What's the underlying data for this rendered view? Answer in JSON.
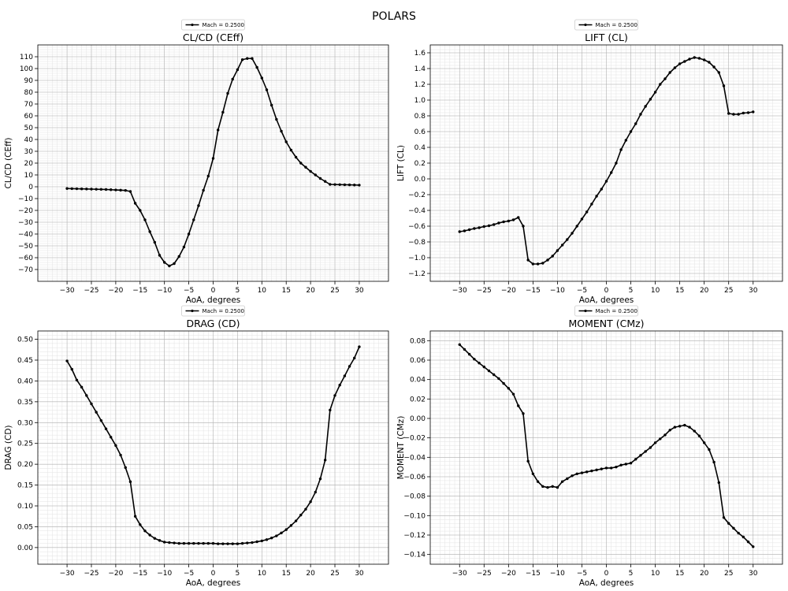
{
  "suptitle": "POLARS",
  "chart_data": [
    {
      "type": "line",
      "title": "CL/CD (CEff)",
      "xlabel": "AoA, degrees",
      "ylabel": "CL/CD (CEff)",
      "legend": "Mach = 0.2500",
      "legend_position": "top-center",
      "grid": true,
      "xlim": [
        -36,
        36
      ],
      "ylim": [
        -80,
        120
      ],
      "xticks": [
        -30,
        -25,
        -20,
        -15,
        -10,
        -5,
        0,
        5,
        10,
        15,
        20,
        25,
        30
      ],
      "yticks": [
        -70,
        -60,
        -50,
        -40,
        -30,
        -20,
        -10,
        0,
        10,
        20,
        30,
        40,
        50,
        60,
        70,
        80,
        90,
        100,
        110
      ],
      "series": [
        {
          "name": "Mach = 0.2500",
          "x": [
            -30,
            -29,
            -28,
            -27,
            -26,
            -25,
            -24,
            -23,
            -22,
            -21,
            -20,
            -19,
            -18,
            -17,
            -16,
            -15,
            -14,
            -13,
            -12,
            -11,
            -10,
            -9,
            -8,
            -7,
            -6,
            -5,
            -4,
            -3,
            -2,
            -1,
            0,
            1,
            2,
            3,
            4,
            5,
            6,
            7,
            8,
            9,
            10,
            11,
            12,
            13,
            14,
            15,
            16,
            17,
            18,
            19,
            20,
            21,
            22,
            23,
            24,
            25,
            26,
            27,
            28,
            29,
            30
          ],
          "y": [
            -1.5,
            -1.6,
            -1.7,
            -1.8,
            -1.9,
            -2.0,
            -2.1,
            -2.2,
            -2.3,
            -2.5,
            -2.7,
            -2.9,
            -3.1,
            -4.0,
            -14.0,
            -20.0,
            -28.0,
            -38.0,
            -47.0,
            -58.0,
            -64.0,
            -67.0,
            -65.0,
            -59.0,
            -51.0,
            -40.0,
            -28.0,
            -16.0,
            -3.0,
            9.0,
            24.0,
            48.0,
            63.0,
            79.0,
            91.0,
            99.0,
            107.5,
            108.5,
            108.5,
            101.0,
            92.0,
            82.0,
            69.0,
            57.0,
            47.0,
            38.0,
            31.0,
            25.0,
            20.0,
            16.5,
            13.0,
            10.0,
            7.0,
            4.5,
            2.0,
            1.9,
            1.8,
            1.7,
            1.6,
            1.5,
            1.4
          ]
        }
      ]
    },
    {
      "type": "line",
      "title": "LIFT (CL)",
      "xlabel": "AoA, degrees",
      "ylabel": "LIFT (CL)",
      "legend": "Mach = 0.2500",
      "legend_position": "top-center",
      "grid": true,
      "xlim": [
        -36,
        36
      ],
      "ylim": [
        -1.3,
        1.7
      ],
      "xticks": [
        -30,
        -25,
        -20,
        -15,
        -10,
        -5,
        0,
        5,
        10,
        15,
        20,
        25,
        30
      ],
      "yticks": [
        -1.2,
        -1.0,
        -0.8,
        -0.6,
        -0.4,
        -0.2,
        0.0,
        0.2,
        0.4,
        0.6,
        0.8,
        1.0,
        1.2,
        1.4,
        1.6
      ],
      "series": [
        {
          "name": "Mach = 0.2500",
          "x": [
            -30,
            -29,
            -28,
            -27,
            -26,
            -25,
            -24,
            -23,
            -22,
            -21,
            -20,
            -19,
            -18,
            -17,
            -16,
            -15,
            -14,
            -13,
            -12,
            -11,
            -10,
            -9,
            -8,
            -7,
            -6,
            -5,
            -4,
            -3,
            -2,
            -1,
            0,
            1,
            2,
            3,
            4,
            5,
            6,
            7,
            8,
            9,
            10,
            11,
            12,
            13,
            14,
            15,
            16,
            17,
            18,
            19,
            20,
            21,
            22,
            23,
            24,
            25,
            26,
            27,
            28,
            29,
            30
          ],
          "y": [
            -0.67,
            -0.66,
            -0.645,
            -0.63,
            -0.62,
            -0.605,
            -0.595,
            -0.58,
            -0.56,
            -0.545,
            -0.535,
            -0.52,
            -0.49,
            -0.6,
            -1.03,
            -1.08,
            -1.08,
            -1.07,
            -1.03,
            -0.98,
            -0.91,
            -0.84,
            -0.77,
            -0.69,
            -0.6,
            -0.51,
            -0.42,
            -0.32,
            -0.22,
            -0.13,
            -0.03,
            0.08,
            0.2,
            0.37,
            0.49,
            0.6,
            0.7,
            0.82,
            0.92,
            1.01,
            1.1,
            1.2,
            1.27,
            1.35,
            1.41,
            1.46,
            1.49,
            1.52,
            1.54,
            1.53,
            1.51,
            1.48,
            1.42,
            1.35,
            1.18,
            0.83,
            0.82,
            0.82,
            0.835,
            0.84,
            0.85
          ]
        }
      ]
    },
    {
      "type": "line",
      "title": "DRAG (CD)",
      "xlabel": "AoA, degrees",
      "ylabel": "DRAG (CD)",
      "legend": "Mach = 0.2500",
      "legend_position": "top-center",
      "grid": true,
      "xlim": [
        -36,
        36
      ],
      "ylim": [
        -0.04,
        0.52
      ],
      "xticks": [
        -30,
        -25,
        -20,
        -15,
        -10,
        -5,
        0,
        5,
        10,
        15,
        20,
        25,
        30
      ],
      "yticks": [
        0.0,
        0.05,
        0.1,
        0.15,
        0.2,
        0.25,
        0.3,
        0.35,
        0.4,
        0.45,
        0.5
      ],
      "series": [
        {
          "name": "Mach = 0.2500",
          "x": [
            -30,
            -29,
            -28,
            -27,
            -26,
            -25,
            -24,
            -23,
            -22,
            -21,
            -20,
            -19,
            -18,
            -17,
            -16,
            -15,
            -14,
            -13,
            -12,
            -11,
            -10,
            -9,
            -8,
            -7,
            -6,
            -5,
            -4,
            -3,
            -2,
            -1,
            0,
            1,
            2,
            3,
            4,
            5,
            6,
            7,
            8,
            9,
            10,
            11,
            12,
            13,
            14,
            15,
            16,
            17,
            18,
            19,
            20,
            21,
            22,
            23,
            24,
            25,
            26,
            27,
            28,
            29,
            30
          ],
          "y": [
            0.448,
            0.428,
            0.402,
            0.385,
            0.365,
            0.345,
            0.325,
            0.305,
            0.285,
            0.265,
            0.245,
            0.222,
            0.192,
            0.158,
            0.075,
            0.055,
            0.04,
            0.03,
            0.022,
            0.017,
            0.013,
            0.012,
            0.011,
            0.01,
            0.01,
            0.01,
            0.01,
            0.01,
            0.01,
            0.01,
            0.01,
            0.009,
            0.009,
            0.009,
            0.009,
            0.009,
            0.01,
            0.011,
            0.012,
            0.014,
            0.016,
            0.019,
            0.023,
            0.028,
            0.035,
            0.043,
            0.053,
            0.064,
            0.078,
            0.092,
            0.11,
            0.133,
            0.165,
            0.21,
            0.33,
            0.365,
            0.39,
            0.412,
            0.435,
            0.455,
            0.482
          ]
        }
      ]
    },
    {
      "type": "line",
      "title": "MOMENT (CMz)",
      "xlabel": "AoA, degrees",
      "ylabel": "MOMENT (CMz)",
      "legend": "Mach = 0.2500",
      "legend_position": "top-center",
      "grid": true,
      "xlim": [
        -36,
        36
      ],
      "ylim": [
        -0.15,
        0.09
      ],
      "xticks": [
        -30,
        -25,
        -20,
        -15,
        -10,
        -5,
        0,
        5,
        10,
        15,
        20,
        25,
        30
      ],
      "yticks": [
        -0.14,
        -0.12,
        -0.1,
        -0.08,
        -0.06,
        -0.04,
        -0.02,
        0.0,
        0.02,
        0.04,
        0.06,
        0.08
      ],
      "series": [
        {
          "name": "Mach = 0.2500",
          "x": [
            -30,
            -29,
            -28,
            -27,
            -26,
            -25,
            -24,
            -23,
            -22,
            -21,
            -20,
            -19,
            -18,
            -17,
            -16,
            -15,
            -14,
            -13,
            -12,
            -11,
            -10,
            -9,
            -8,
            -7,
            -6,
            -5,
            -4,
            -3,
            -2,
            -1,
            0,
            1,
            2,
            3,
            4,
            5,
            6,
            7,
            8,
            9,
            10,
            11,
            12,
            13,
            14,
            15,
            16,
            17,
            18,
            19,
            20,
            21,
            22,
            23,
            24,
            25,
            26,
            27,
            28,
            29,
            30
          ],
          "y": [
            0.076,
            0.071,
            0.066,
            0.061,
            0.057,
            0.053,
            0.049,
            0.045,
            0.041,
            0.036,
            0.031,
            0.025,
            0.013,
            0.005,
            -0.044,
            -0.057,
            -0.065,
            -0.07,
            -0.071,
            -0.07,
            -0.071,
            -0.065,
            -0.062,
            -0.059,
            -0.057,
            -0.056,
            -0.055,
            -0.054,
            -0.053,
            -0.052,
            -0.051,
            -0.051,
            -0.05,
            -0.048,
            -0.047,
            -0.046,
            -0.042,
            -0.038,
            -0.034,
            -0.03,
            -0.025,
            -0.021,
            -0.017,
            -0.012,
            -0.009,
            -0.008,
            -0.007,
            -0.009,
            -0.013,
            -0.018,
            -0.025,
            -0.032,
            -0.045,
            -0.066,
            -0.102,
            -0.108,
            -0.113,
            -0.118,
            -0.122,
            -0.127,
            -0.132
          ]
        }
      ]
    }
  ]
}
